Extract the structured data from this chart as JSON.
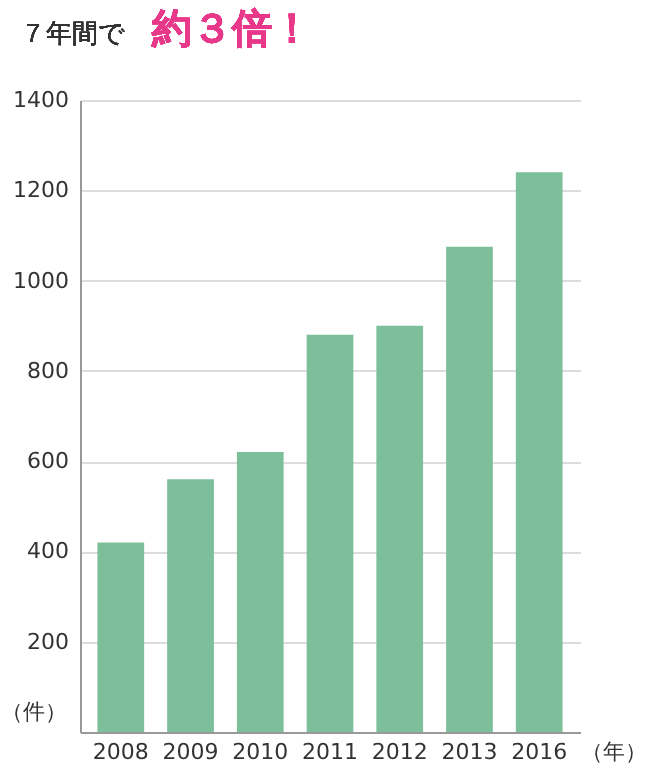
{
  "chart_data": {
    "type": "bar",
    "title": "７年間で",
    "subtitle": "約３倍！",
    "categories": [
      "2008",
      "2009",
      "2010",
      "2011",
      "2012",
      "2013",
      "2016"
    ],
    "values": [
      420,
      560,
      620,
      880,
      900,
      1075,
      1240
    ],
    "color": "#7cbf9a",
    "xlabel": "（年）",
    "ylabel": "（件）",
    "ylim": [
      0,
      1400
    ],
    "yticks": [
      {
        "value": 0,
        "label": null
      },
      200,
      400,
      600,
      800,
      1000,
      1200,
      1400
    ],
    "grid": "y"
  }
}
